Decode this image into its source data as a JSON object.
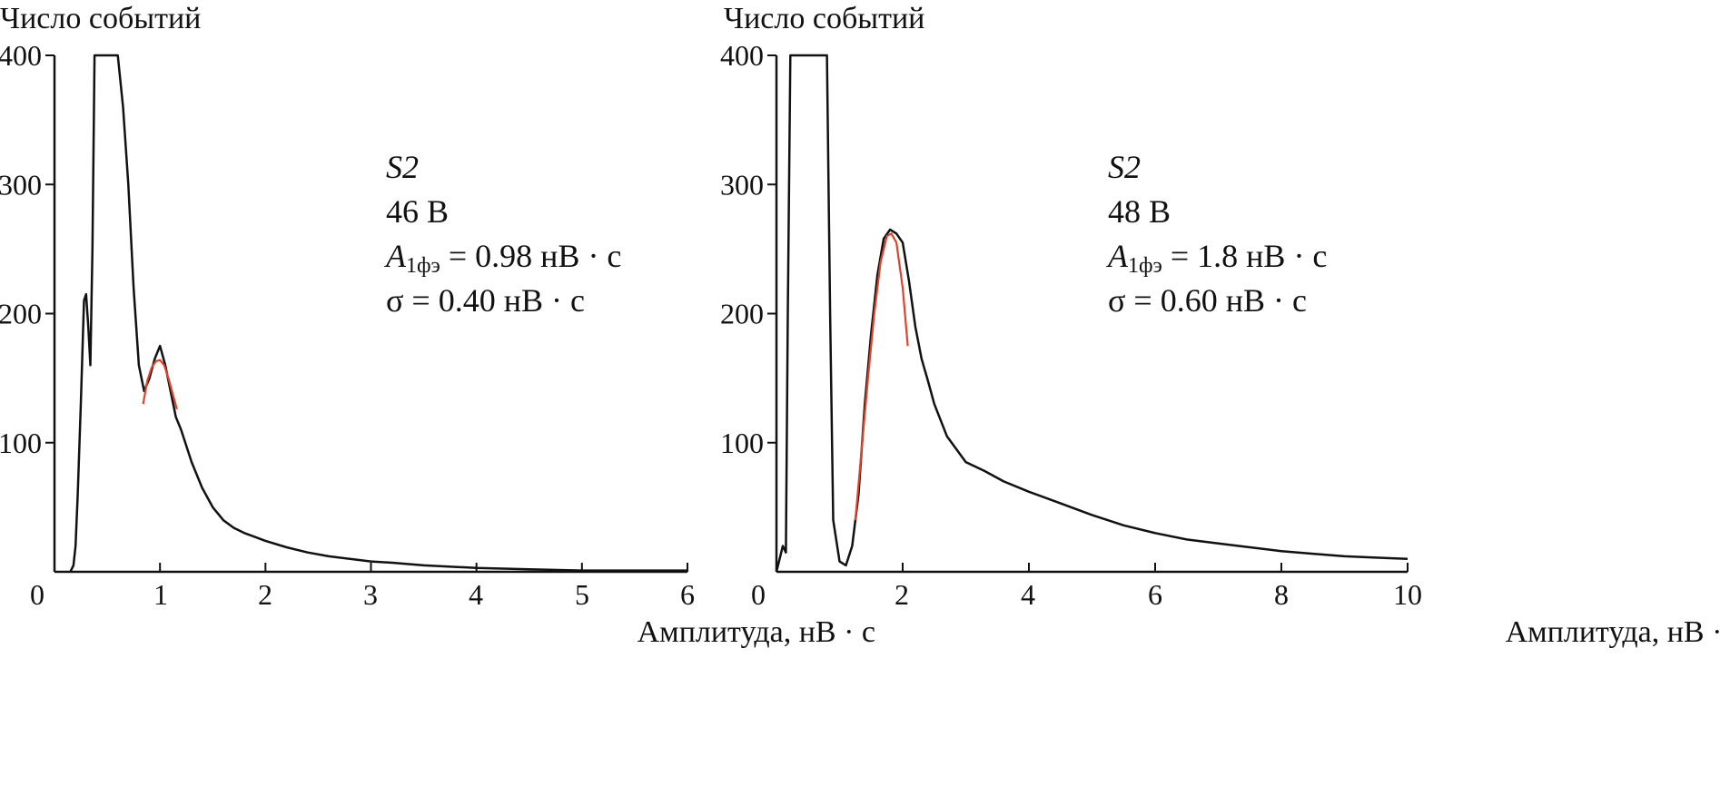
{
  "chart_data": [
    {
      "type": "line",
      "ylabel": "Число событий",
      "xlabel": "Амплитуда, нВ · с",
      "xlim": [
        0,
        6
      ],
      "ylim": [
        0,
        400
      ],
      "xticks": [
        "0",
        "1",
        "2",
        "3",
        "4",
        "5",
        "6"
      ],
      "yticks": [
        "100",
        "200",
        "300",
        "400"
      ],
      "annotation": {
        "sample": "S2",
        "voltage": "46 В",
        "a1_label": "A",
        "a1_sub": "1фэ",
        "a1_value": " = 0.98 нВ · с",
        "sigma": "σ = 0.40 нВ · с"
      },
      "series": [
        {
          "color": "#111111",
          "x": [
            0.15,
            0.18,
            0.2,
            0.22,
            0.25,
            0.28,
            0.3,
            0.32,
            0.34,
            0.36,
            0.38,
            0.4,
            0.44,
            0.48,
            0.52,
            0.56,
            0.6,
            0.65,
            0.7,
            0.75,
            0.8,
            0.85,
            0.9,
            0.95,
            1.0,
            1.05,
            1.1,
            1.15,
            1.2,
            1.3,
            1.4,
            1.5,
            1.6,
            1.7,
            1.8,
            1.9,
            2.0,
            2.2,
            2.4,
            2.6,
            2.8,
            3.0,
            3.2,
            3.5,
            4.0,
            4.5,
            5.0,
            5.5,
            6.0
          ],
          "y": [
            0,
            5,
            20,
            60,
            130,
            210,
            215,
            190,
            160,
            250,
            400,
            400,
            400,
            400,
            400,
            400,
            400,
            360,
            300,
            220,
            160,
            140,
            150,
            165,
            175,
            160,
            140,
            120,
            110,
            85,
            65,
            50,
            40,
            34,
            30,
            27,
            24,
            19,
            15,
            12,
            10,
            8,
            7,
            5,
            3,
            2,
            1,
            1,
            1
          ]
        },
        {
          "color": "#e0432a",
          "x": [
            0.84,
            0.88,
            0.92,
            0.96,
            1.0,
            1.04,
            1.08,
            1.12,
            1.16
          ],
          "y": [
            130,
            148,
            158,
            163,
            164,
            160,
            150,
            138,
            126
          ]
        }
      ]
    },
    {
      "type": "line",
      "ylabel": "Число событий",
      "xlabel": "Амплитуда, нВ · с",
      "xlim": [
        0,
        10
      ],
      "ylim": [
        0,
        400
      ],
      "xticks": [
        "0",
        "2",
        "4",
        "6",
        "8",
        "10"
      ],
      "yticks": [
        "100",
        "200",
        "300",
        "400"
      ],
      "annotation": {
        "sample": "S2",
        "voltage": "48 В",
        "a1_label": "A",
        "a1_sub": "1фэ",
        "a1_value": " = 1.8 нВ · с",
        "sigma": "σ = 0.60 нВ · с"
      },
      "series": [
        {
          "color": "#111111",
          "x": [
            0.0,
            0.05,
            0.1,
            0.15,
            0.18,
            0.22,
            0.3,
            0.5,
            0.7,
            0.8,
            0.85,
            0.9,
            1.0,
            1.1,
            1.2,
            1.3,
            1.4,
            1.5,
            1.6,
            1.7,
            1.8,
            1.9,
            2.0,
            2.1,
            2.2,
            2.3,
            2.4,
            2.5,
            2.7,
            3.0,
            3.3,
            3.6,
            4.0,
            4.5,
            5.0,
            5.5,
            6.0,
            6.5,
            7.0,
            7.5,
            8.0,
            8.5,
            9.0,
            9.5,
            10.0
          ],
          "y": [
            0,
            10,
            20,
            15,
            200,
            400,
            400,
            400,
            400,
            400,
            200,
            40,
            8,
            5,
            20,
            60,
            130,
            185,
            230,
            258,
            265,
            262,
            255,
            225,
            190,
            165,
            148,
            130,
            105,
            85,
            78,
            70,
            62,
            53,
            44,
            36,
            30,
            25,
            22,
            19,
            16,
            14,
            12,
            11,
            10
          ]
        },
        {
          "color": "#e0432a",
          "x": [
            1.25,
            1.35,
            1.45,
            1.55,
            1.65,
            1.75,
            1.82,
            1.9,
            2.0,
            2.08
          ],
          "y": [
            40,
            95,
            150,
            200,
            240,
            260,
            262,
            255,
            220,
            175
          ]
        }
      ]
    }
  ]
}
